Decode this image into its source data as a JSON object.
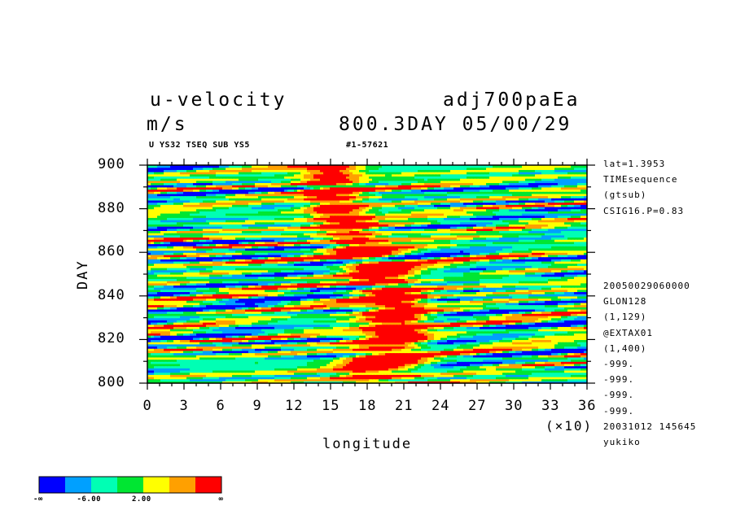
{
  "header": {
    "variable": "u-velocity",
    "units": "m/s",
    "experiment": "adj700paEa",
    "time": "800.3DAY 05/00/29",
    "subtitle": "U YS32 TSEQ SUB YS5",
    "record": "#1-57621"
  },
  "sidebar": {
    "top": [
      "lat=1.3953",
      "TIMEsequence",
      "(gtsub)",
      "CSIG16.P=0.83"
    ],
    "bottom": [
      "20050029060000",
      "GLON128",
      "(1,129)",
      "@EXTAX01",
      "(1,400)",
      "-999.",
      "-999.",
      "-999.",
      "-999.",
      "20031012 145645",
      "yukiko"
    ]
  },
  "colorbar": {
    "colors": [
      "#0000ff",
      "#00a0ff",
      "#00ffb4",
      "#00e632",
      "#ffff00",
      "#ffa000",
      "#ff0000"
    ],
    "labels": [
      "-∞",
      "-6.00",
      "2.00",
      "∞"
    ]
  },
  "chart_data": {
    "type": "heatmap",
    "xlabel": "longitude",
    "ylabel": "DAY",
    "x_multiplier": "(×10)",
    "xlim": [
      0,
      36
    ],
    "ylim": [
      800,
      900
    ],
    "xticks": [
      "0",
      "3",
      "6",
      "9",
      "12",
      "15",
      "18",
      "21",
      "24",
      "27",
      "30",
      "33",
      "36"
    ],
    "yticks": [
      "800",
      "820",
      "840",
      "860",
      "880",
      "900"
    ],
    "color_levels": [
      "-∞",
      "-6.00",
      "2.00",
      "∞"
    ],
    "pattern": "eastward-tilted streaks of mostly green/cyan values, with a band of high (red/orange) values centred near longitude 17-22 (×10) throughout the period, and scattered blue minima"
  }
}
